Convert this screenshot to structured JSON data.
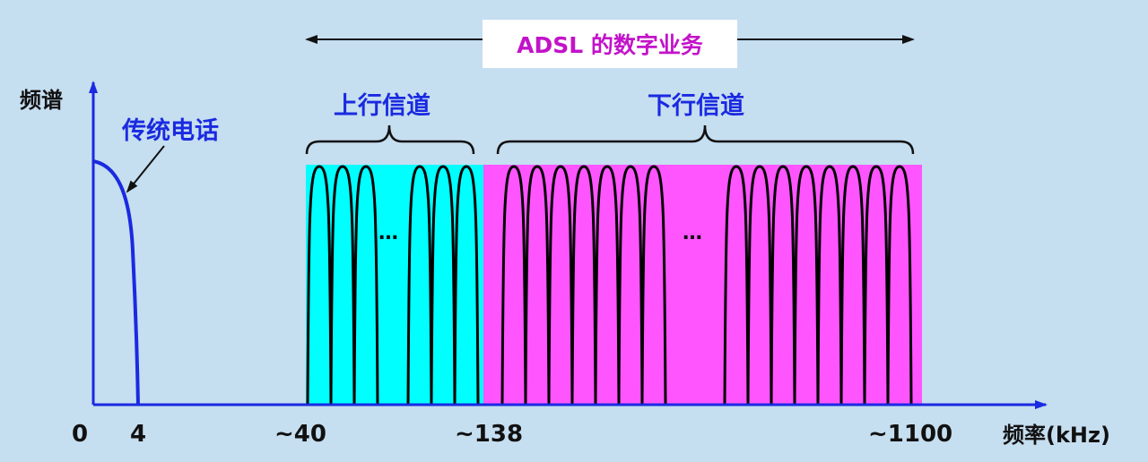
{
  "title": "ADSL 的数字业务",
  "labels": {
    "y_axis": "频谱",
    "x_axis": "频率(kHz)",
    "telephone": "传统电话",
    "upstream": "上行信道",
    "downstream": "下行信道",
    "ellipsis": "…"
  },
  "ticks": {
    "t0": "0",
    "t4": "4",
    "t40": "~40",
    "t138": "~138",
    "t1100": "~1100"
  },
  "colors": {
    "background": "#c5def0",
    "upstream_fill": "#00ffff",
    "downstream_fill": "#ff55ff",
    "axis": "#1a2ae0",
    "title_text": "#c213c9",
    "label_text": "#1a2ae0"
  },
  "bands": {
    "upstream_carriers_left": 3,
    "upstream_carriers_right": 3,
    "downstream_carriers_left": 7,
    "downstream_carriers_right": 8
  }
}
